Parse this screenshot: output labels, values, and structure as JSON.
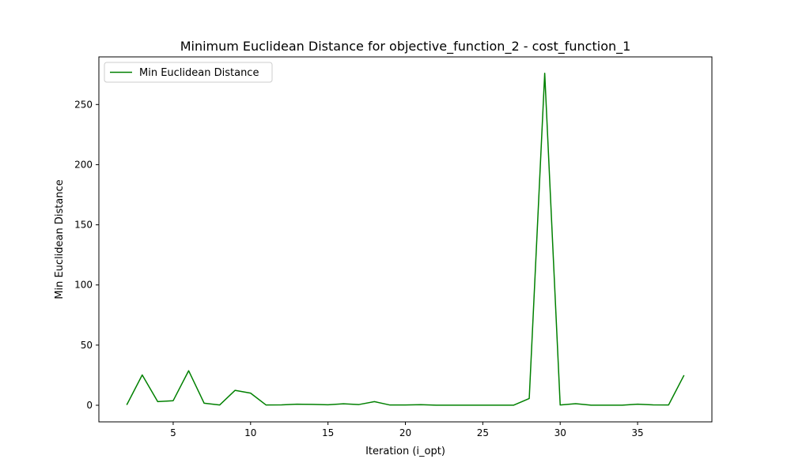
{
  "chart_data": {
    "type": "line",
    "title": "Minimum Euclidean Distance for objective_function_2 - cost_function_1",
    "xlabel": "Iteration (i_opt)",
    "ylabel": "Min Euclidean Distance",
    "xlim": [
      0.2,
      39.8
    ],
    "ylim": [
      -13.8,
      289.6
    ],
    "xticks": [
      5,
      10,
      15,
      20,
      25,
      30,
      35
    ],
    "yticks": [
      0,
      50,
      100,
      150,
      200,
      250
    ],
    "grid": false,
    "legend_position": "top-left",
    "series": [
      {
        "name": "Min Euclidean Distance",
        "color": "#008000",
        "x": [
          2,
          3,
          4,
          5,
          6,
          7,
          8,
          9,
          10,
          11,
          12,
          13,
          14,
          15,
          16,
          17,
          18,
          19,
          20,
          21,
          22,
          23,
          24,
          25,
          26,
          27,
          28,
          29,
          30,
          31,
          32,
          33,
          34,
          35,
          36,
          37,
          38
        ],
        "y": [
          0.3,
          25.2,
          3.0,
          3.8,
          28.7,
          1.7,
          0.2,
          12.4,
          10.1,
          0.2,
          0.3,
          0.9,
          0.7,
          0.4,
          1.2,
          0.6,
          3.0,
          0.2,
          0.2,
          0.5,
          0.1,
          0.1,
          0.1,
          0.1,
          0.1,
          0.1,
          5.6,
          276.0,
          0.2,
          1.3,
          0.1,
          0.1,
          0.1,
          0.9,
          0.3,
          0.2,
          25.0
        ]
      }
    ]
  }
}
